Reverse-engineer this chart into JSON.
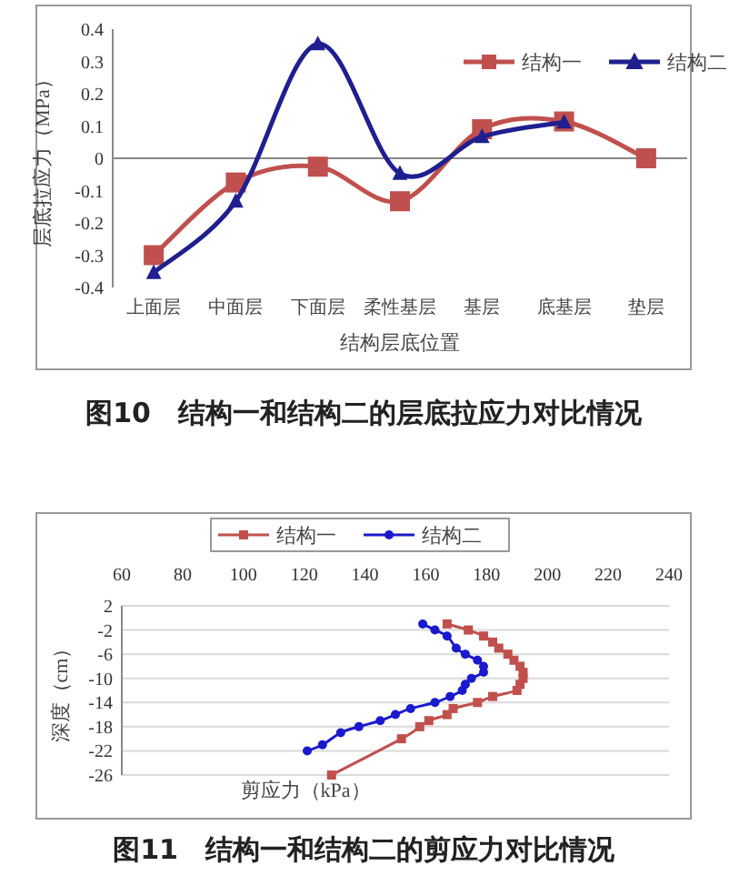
{
  "chart_data": [
    {
      "type": "line",
      "title": "图10　结构一和结构二的层底拉应力对比情况",
      "xlabel": "结构层底位置",
      "ylabel": "层底拉应力（MPa）",
      "categories": [
        "上面层",
        "中面层",
        "下面层",
        "柔性基层",
        "基层",
        "底基层",
        "垫层"
      ],
      "ylim": [
        -0.4,
        0.4
      ],
      "yticks": [
        -0.4,
        -0.3,
        -0.2,
        -0.1,
        0,
        0.1,
        0.2,
        0.3,
        0.4
      ],
      "legend": "top right",
      "series": [
        {
          "name": "结构一",
          "color": "#c0504d",
          "marker": "square",
          "values": [
            -0.3,
            -0.075,
            -0.026,
            -0.133,
            0.09,
            0.114,
            0
          ]
        },
        {
          "name": "结构二",
          "color": "#1f1f8f",
          "marker": "triangle",
          "values": [
            -0.354,
            -0.133,
            0.354,
            -0.047,
            0.067,
            0.112,
            null
          ]
        }
      ]
    },
    {
      "type": "line",
      "title": "图11　结构一和结构二的剪应力对比情况",
      "xlabel": "剪应力（kPa）",
      "ylabel": "深度（cm）",
      "xlim": [
        60,
        240
      ],
      "xticks": [
        60,
        80,
        100,
        120,
        140,
        160,
        180,
        200,
        220,
        240
      ],
      "ylim": [
        -26,
        2
      ],
      "yticks": [
        2,
        -2,
        -6,
        -10,
        -14,
        -18,
        -22,
        -26
      ],
      "grid": "y",
      "legend": "top",
      "series": [
        {
          "name": "结构一",
          "color": "#c0504d",
          "marker": "square",
          "x": [
            167,
            174,
            179,
            182,
            184,
            187,
            189,
            191,
            192,
            192,
            191,
            190,
            182,
            177,
            169,
            167,
            161,
            158,
            152,
            129
          ],
          "values": [
            -1,
            -2,
            -3,
            -4,
            -5,
            -6,
            -7,
            -8,
            -9,
            -10,
            -11,
            -12,
            -13,
            -14,
            -15,
            -16,
            -17,
            -18,
            -20,
            -26
          ]
        },
        {
          "name": "结构二",
          "color": "#1a1acc",
          "marker": "circle",
          "x": [
            159,
            163,
            167,
            170,
            173,
            177,
            179,
            179,
            175,
            173,
            172,
            168,
            163,
            155,
            150,
            145,
            138,
            132,
            126,
            121
          ],
          "values": [
            -1,
            -2,
            -3,
            -5,
            -6,
            -7,
            -8,
            -9,
            -10,
            -11,
            -12,
            -13,
            -14,
            -15,
            -16,
            -17,
            -18,
            -19,
            -21,
            -22
          ]
        }
      ]
    }
  ]
}
